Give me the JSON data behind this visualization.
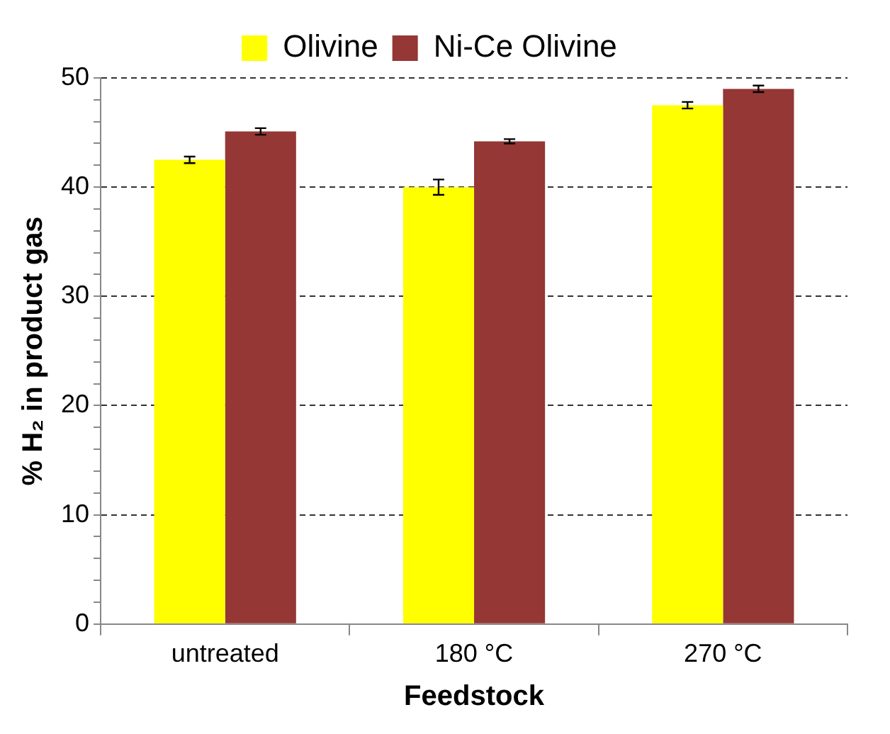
{
  "chart_data": {
    "type": "bar",
    "xlabel": "Feedstock",
    "ylabel": "% H₂ in product gas",
    "categories": [
      "untreated",
      "180 °C",
      "270 °C"
    ],
    "series": [
      {
        "name": "Olivine",
        "color": "#ffff00",
        "values": [
          42.5,
          40.0,
          47.5
        ],
        "errors": [
          0.3,
          0.7,
          0.3
        ]
      },
      {
        "name": "Ni-Ce Olivine",
        "color": "#953735",
        "values": [
          45.1,
          44.2,
          49.0
        ],
        "errors": [
          0.3,
          0.2,
          0.3
        ]
      }
    ],
    "ylim": [
      0,
      50
    ],
    "yticks": [
      0,
      {
        "value": 2,
        "label": null
      },
      {
        "value": 4,
        "label": null
      },
      {
        "value": 6,
        "label": null
      },
      {
        "value": 8,
        "label": null
      },
      10,
      {
        "value": 12,
        "label": null
      },
      {
        "value": 14,
        "label": null
      },
      {
        "value": 16,
        "label": null
      },
      {
        "value": 18,
        "label": null
      },
      20,
      {
        "value": 22,
        "label": null
      },
      {
        "value": 24,
        "label": null
      },
      {
        "value": 26,
        "label": null
      },
      {
        "value": 28,
        "label": null
      },
      30,
      {
        "value": 32,
        "label": null
      },
      {
        "value": 34,
        "label": null
      },
      {
        "value": 36,
        "label": null
      },
      {
        "value": 38,
        "label": null
      },
      40,
      {
        "value": 42,
        "label": null
      },
      {
        "value": 44,
        "label": null
      },
      {
        "value": 46,
        "label": null
      },
      {
        "value": 48,
        "label": null
      },
      50
    ],
    "grid": "y",
    "legend": "top"
  }
}
